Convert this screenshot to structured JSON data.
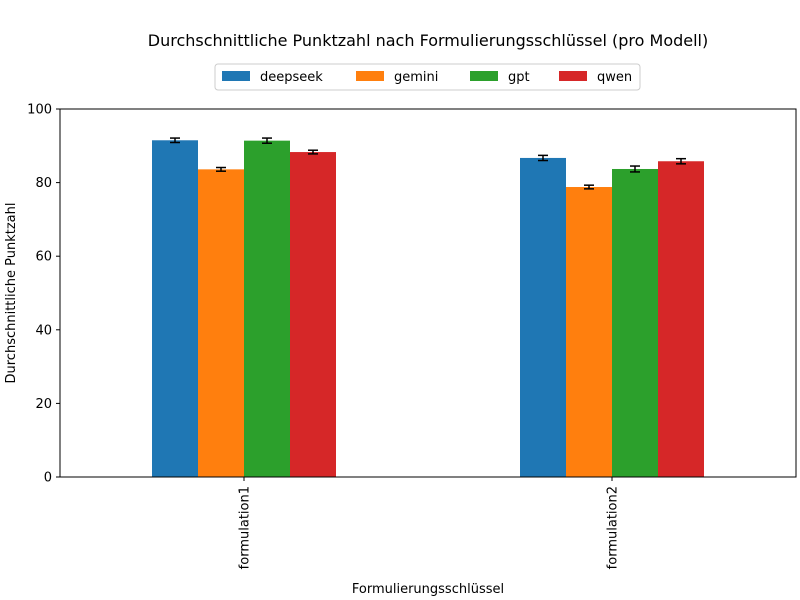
{
  "chart_data": {
    "type": "bar",
    "title": "Durchschnittliche Punktzahl nach Formulierungsschlüssel (pro Modell)",
    "xlabel": "Formulierungsschlüssel",
    "ylabel": "Durchschnittliche Punktzahl",
    "categories": [
      "formulation1",
      "formulation2"
    ],
    "ylim": [
      0,
      100
    ],
    "yticks": [
      "0",
      "20",
      "40",
      "60",
      "80",
      "100"
    ],
    "legend_position": "top-center",
    "grid": false,
    "series": [
      {
        "name": "deepseek",
        "color": "#1f77b4",
        "values": [
          91.5,
          86.7
        ],
        "errors": [
          0.6,
          0.7
        ]
      },
      {
        "name": "gemini",
        "color": "#ff7f0e",
        "values": [
          83.6,
          78.8
        ],
        "errors": [
          0.5,
          0.5
        ]
      },
      {
        "name": "gpt",
        "color": "#2ca02c",
        "values": [
          91.4,
          83.7
        ],
        "errors": [
          0.7,
          0.8
        ]
      },
      {
        "name": "qwen",
        "color": "#d62728",
        "values": [
          88.3,
          85.8
        ],
        "errors": [
          0.5,
          0.7
        ]
      }
    ]
  }
}
